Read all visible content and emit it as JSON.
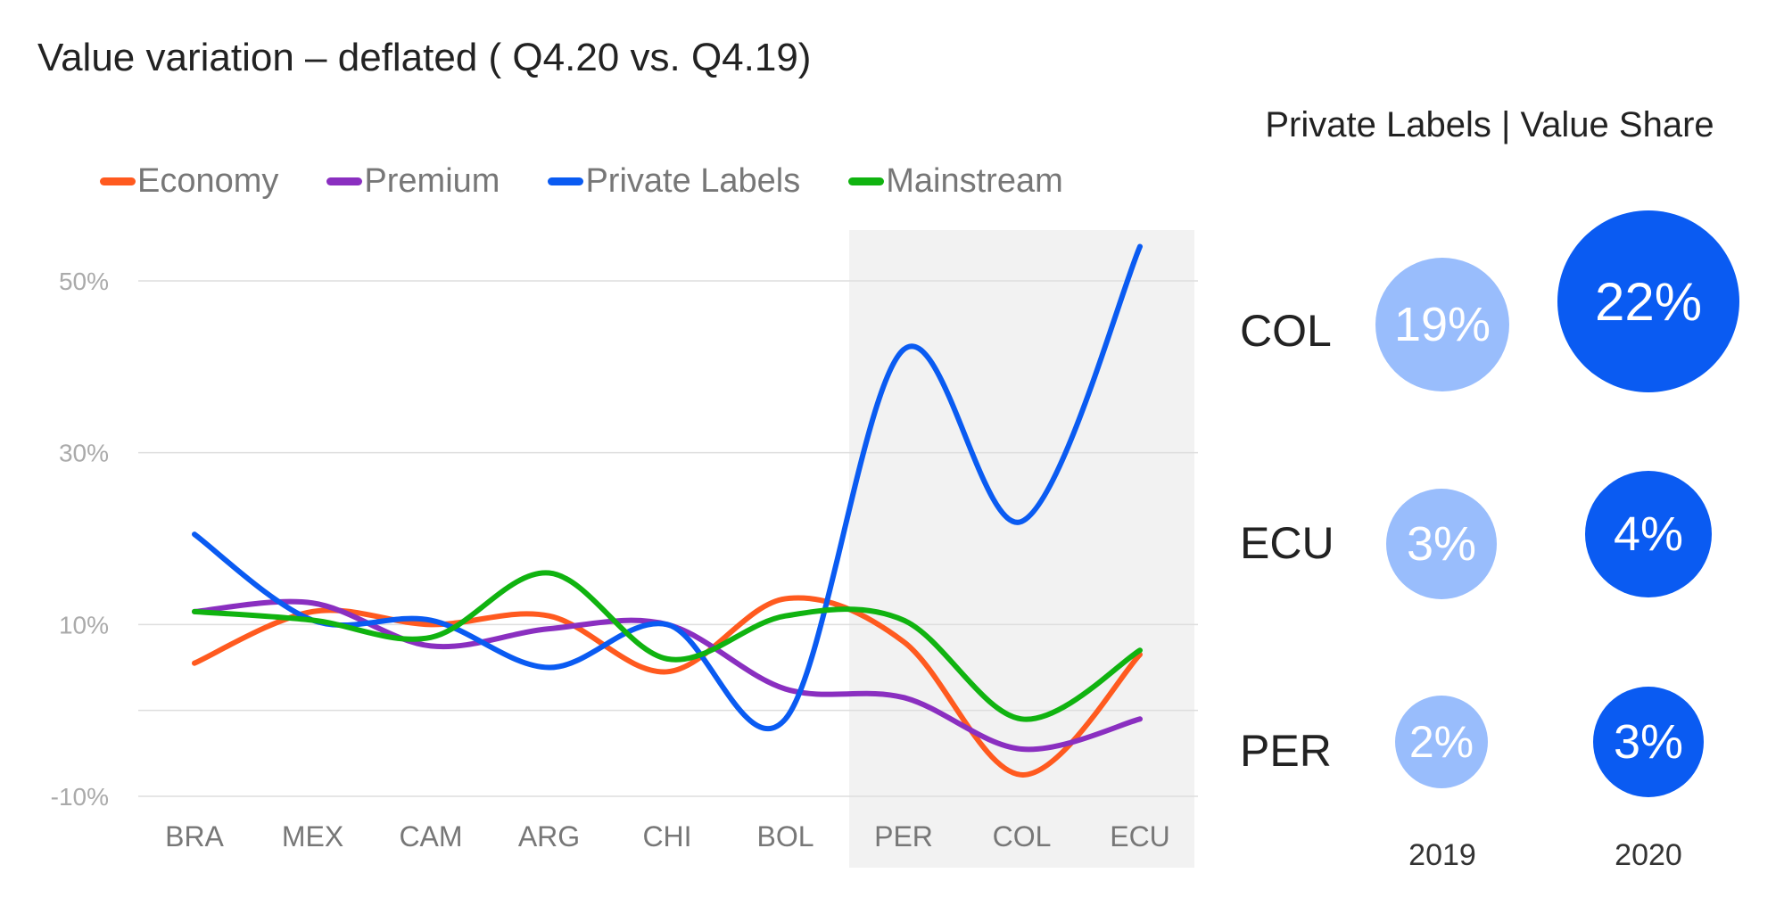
{
  "title": "Value variation – deflated ( Q4.20 vs. Q4.19)",
  "chart_data": [
    {
      "type": "line",
      "title": "Value variation – deflated ( Q4.20 vs. Q4.19)",
      "categories": [
        "BRA",
        "MEX",
        "CAM",
        "ARG",
        "CHI",
        "BOL",
        "PER",
        "COL",
        "ECU"
      ],
      "y_ticks": [
        "50%",
        "30%",
        "10%",
        "-10%"
      ],
      "ylim": [
        -10,
        50
      ],
      "gridlines": [
        -10,
        0,
        10,
        30,
        50
      ],
      "legend_position": "top-left",
      "highlight_categories": [
        "PER",
        "COL",
        "ECU"
      ],
      "series": [
        {
          "name": "Economy",
          "color": "#ff5a1f",
          "values": [
            5.5,
            11.5,
            10,
            11,
            4.5,
            13,
            8,
            -7.5,
            6.5
          ]
        },
        {
          "name": "Premium",
          "color": "#8a2fc0",
          "values": [
            11.5,
            12.5,
            7.5,
            9.5,
            10,
            2.5,
            1.5,
            -4.5,
            -1
          ]
        },
        {
          "name": "Private Labels",
          "color": "#0a5bf2",
          "values": [
            20.5,
            10.5,
            10.5,
            5,
            10,
            -1,
            42,
            22,
            54
          ]
        },
        {
          "name": "Mainstream",
          "color": "#10b310",
          "values": [
            11.5,
            10.5,
            8.5,
            16,
            6,
            11,
            10.5,
            -1,
            7
          ]
        }
      ]
    },
    {
      "type": "bubble",
      "title": "Private Labels | Value Share",
      "rows": [
        "COL",
        "ECU",
        "PER"
      ],
      "years": [
        "2019",
        "2020"
      ],
      "values": [
        [
          19,
          22
        ],
        [
          3,
          4
        ],
        [
          2,
          3
        ]
      ],
      "labels": [
        [
          "19%",
          "22%"
        ],
        [
          "3%",
          "4%"
        ],
        [
          "2%",
          "3%"
        ]
      ],
      "colors": {
        "2019": "#99bdfc",
        "2020": "#0a5bf2"
      }
    }
  ],
  "legend": [
    {
      "name": "Economy",
      "color": "#ff5a1f"
    },
    {
      "name": "Premium",
      "color": "#8a2fc0"
    },
    {
      "name": "Private Labels",
      "color": "#0a5bf2"
    },
    {
      "name": "Mainstream",
      "color": "#10b310"
    }
  ],
  "panel": {
    "title": "Private Labels | Value Share",
    "rows": [
      {
        "label": "COL",
        "v2019": "19%",
        "v2020": "22%"
      },
      {
        "label": "ECU",
        "v2019": "3%",
        "v2020": "4%"
      },
      {
        "label": "PER",
        "v2019": "2%",
        "v2020": "3%"
      }
    ],
    "years": [
      "2019",
      "2020"
    ]
  }
}
